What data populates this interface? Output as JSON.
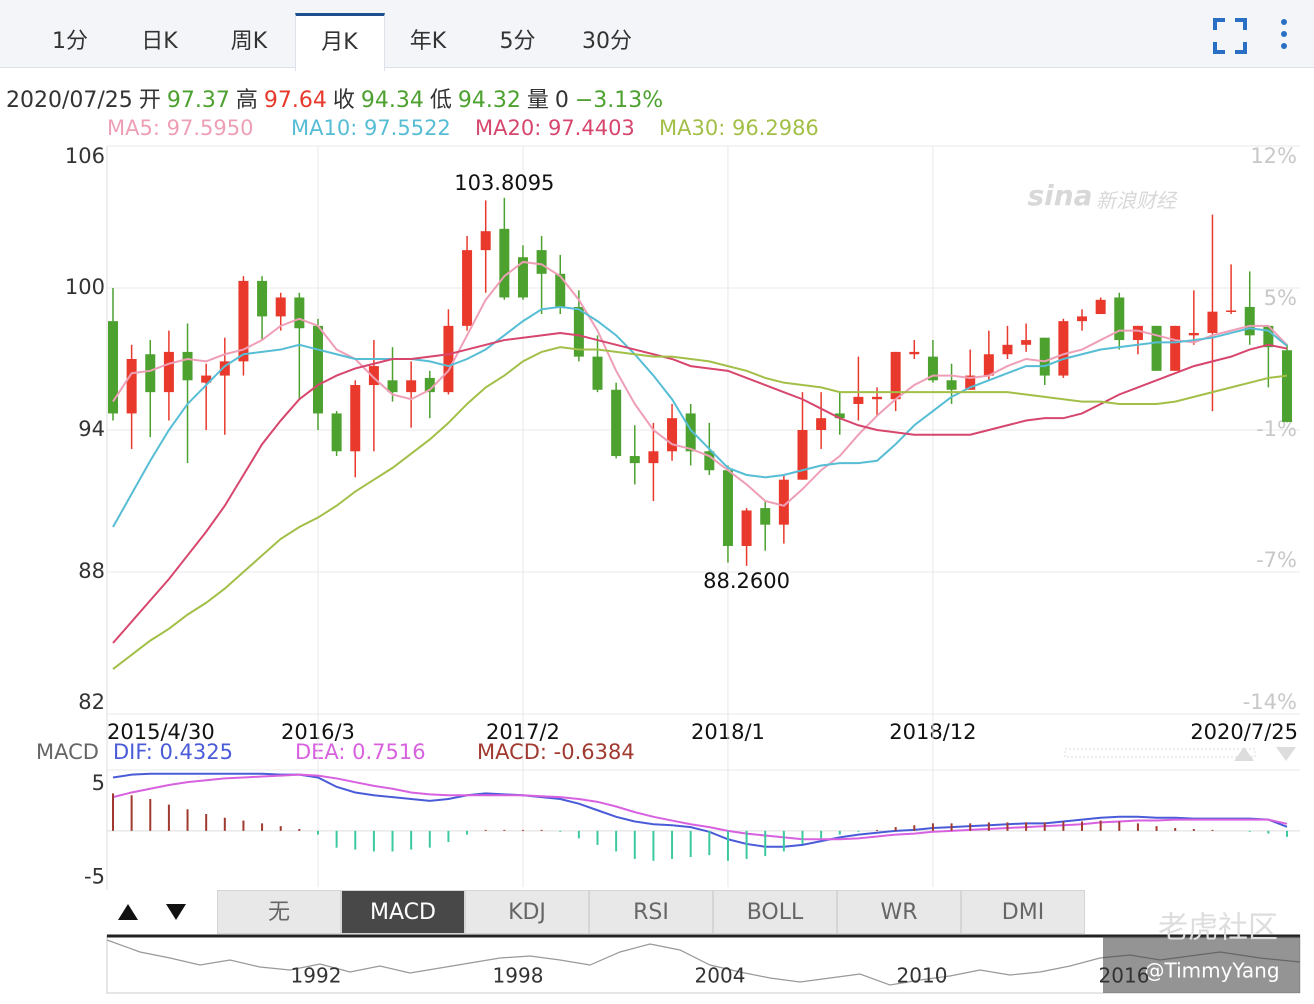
{
  "tabs": [
    "1分",
    "日K",
    "周K",
    "月K",
    "年K",
    "5分",
    "30分"
  ],
  "info": {
    "date": "2020/07/25",
    "fields": [
      {
        "label": "开",
        "value": 97.37,
        "color": "#4ca12f"
      },
      {
        "label": "高",
        "value": 97.64,
        "color": "#e8392c"
      },
      {
        "label": "收",
        "value": 94.34,
        "color": "#4ca12f"
      },
      {
        "label": "低",
        "value": 94.32,
        "color": "#4ca12f"
      },
      {
        "label": "量",
        "value": 0,
        "color": "#333333"
      }
    ],
    "change": "−3.13%",
    "change_color": "#4ca12f"
  },
  "chart_data": [
    {
      "type": "candlestick",
      "categories": [
        "2015/4/30",
        null,
        null,
        null,
        null,
        null,
        null,
        null,
        null,
        null,
        null,
        "2016/3",
        null,
        null,
        null,
        null,
        null,
        null,
        null,
        null,
        null,
        null,
        "2017/2",
        null,
        null,
        null,
        null,
        null,
        null,
        null,
        null,
        null,
        null,
        "2018/1",
        null,
        null,
        null,
        null,
        null,
        null,
        null,
        null,
        null,
        null,
        "2018/12",
        null,
        null,
        null,
        null,
        null,
        null,
        null,
        null,
        null,
        null,
        null,
        null,
        null,
        null,
        null,
        null,
        null,
        null,
        "2020/7/25"
      ],
      "open": [
        98.6,
        94.7,
        97.2,
        95.6,
        97.3,
        96.0,
        96.3,
        96.9,
        100.3,
        98.8,
        99.6,
        98.4,
        94.7,
        93.1,
        95.9,
        96.1,
        95.6,
        96.2,
        95.6,
        98.4,
        101.6,
        102.5,
        101.3,
        101.6,
        100.6,
        99.2,
        97.1,
        95.7,
        92.9,
        92.6,
        93.1,
        94.7,
        93.1,
        92.3,
        89.1,
        90.7,
        90.0,
        91.9,
        94.0,
        94.7,
        95.1,
        95.3,
        95.3,
        97.2,
        97.1,
        96.1,
        95.7,
        96.3,
        97.2,
        97.6,
        97.9,
        96.3,
        98.6,
        98.9,
        99.6,
        97.8,
        98.4,
        96.5,
        98.0,
        98.1,
        99.0,
        99.2,
        98.4,
        97.37
      ],
      "high": [
        100.0,
        97.6,
        97.8,
        98.2,
        98.5,
        96.8,
        97.9,
        100.5,
        100.5,
        99.8,
        99.8,
        98.7,
        94.8,
        96.1,
        97.8,
        97.5,
        96.9,
        96.5,
        99.1,
        102.2,
        103.7,
        103.8095,
        101.8,
        102.2,
        101.4,
        99.9,
        98.0,
        96.0,
        94.2,
        94.3,
        95.1,
        95.1,
        94.3,
        92.5,
        90.7,
        91.0,
        92.1,
        95.6,
        95.6,
        95.6,
        97.1,
        95.8,
        97.3,
        97.8,
        97.8,
        96.8,
        97.4,
        98.2,
        98.4,
        98.5,
        97.9,
        98.7,
        99.1,
        99.6,
        99.8,
        98.4,
        98.4,
        98.4,
        99.9,
        103.1,
        101.0,
        100.7,
        98.4,
        97.64
      ],
      "low": [
        94.4,
        93.2,
        93.7,
        94.4,
        92.6,
        94.0,
        93.8,
        96.3,
        97.8,
        98.2,
        95.3,
        94.0,
        92.9,
        92.0,
        93.1,
        95.2,
        94.1,
        94.5,
        95.5,
        98.2,
        99.8,
        99.5,
        99.5,
        98.9,
        98.9,
        96.9,
        95.6,
        92.8,
        91.7,
        91.0,
        92.7,
        92.5,
        92.1,
        88.4,
        88.26,
        88.9,
        89.2,
        91.9,
        93.2,
        93.8,
        94.4,
        94.6,
        94.8,
        97.0,
        96.0,
        95.1,
        95.7,
        96.1,
        97.0,
        97.3,
        95.9,
        96.2,
        98.2,
        98.9,
        97.4,
        97.2,
        96.5,
        96.5,
        97.6,
        94.8,
        98.9,
        97.6,
        95.8,
        94.32
      ],
      "close": [
        94.7,
        97.0,
        95.6,
        97.3,
        96.1,
        96.3,
        96.9,
        100.3,
        98.8,
        99.6,
        98.3,
        94.7,
        93.1,
        95.9,
        96.7,
        95.6,
        96.1,
        95.6,
        98.4,
        101.6,
        102.4,
        99.6,
        99.6,
        100.6,
        99.2,
        97.1,
        95.7,
        92.9,
        92.6,
        93.1,
        94.5,
        93.1,
        92.3,
        89.1,
        90.6,
        90.0,
        91.9,
        94.0,
        94.5,
        94.5,
        95.4,
        95.4,
        97.3,
        97.3,
        96.1,
        95.7,
        96.3,
        97.2,
        97.6,
        97.8,
        96.3,
        98.6,
        98.8,
        99.5,
        97.8,
        98.4,
        96.5,
        98.4,
        98.1,
        99.0,
        99.05,
        98.0,
        97.5,
        94.34
      ],
      "up_color": "#e8392c",
      "down_color": "#4ca12f",
      "series": [
        {
          "name": "MA5: 97.5950",
          "color": "#ee9fb6",
          "values": [
            95.2,
            96.4,
            96.5,
            96.8,
            97.0,
            96.9,
            97.2,
            97.4,
            97.8,
            98.4,
            98.7,
            98.4,
            97.4,
            97.0,
            96.2,
            95.5,
            95.3,
            95.7,
            96.5,
            98.0,
            99.5,
            100.5,
            101.1,
            101.0,
            100.5,
            99.5,
            98.2,
            96.5,
            95.1,
            94.0,
            93.4,
            93.2,
            92.9,
            92.3,
            91.7,
            91.0,
            90.8,
            91.5,
            92.3,
            92.9,
            93.8,
            94.6,
            95.3,
            95.9,
            96.3,
            96.3,
            96.2,
            96.3,
            96.7,
            97.0,
            96.9,
            97.2,
            97.4,
            97.8,
            98.2,
            98.2,
            98.0,
            97.8,
            97.7,
            98.0,
            98.2,
            98.4,
            98.4,
            97.595
          ]
        },
        {
          "name": "MA10: 97.5522",
          "color": "#56bdd5",
          "values": [
            89.9,
            91.3,
            92.7,
            94.0,
            95.1,
            95.9,
            96.7,
            97.2,
            97.3,
            97.4,
            97.6,
            97.4,
            97.2,
            97.0,
            97.0,
            97.0,
            97.0,
            96.9,
            96.7,
            97.0,
            97.4,
            98.0,
            98.6,
            99.1,
            99.2,
            99.1,
            98.6,
            98.0,
            97.2,
            96.3,
            95.3,
            94.0,
            93.2,
            92.4,
            92.1,
            92.0,
            92.1,
            92.3,
            92.5,
            92.6,
            92.6,
            92.7,
            93.4,
            94.2,
            94.8,
            95.4,
            95.8,
            96.1,
            96.4,
            96.7,
            96.7,
            97.0,
            97.2,
            97.4,
            97.5,
            97.6,
            97.7,
            97.7,
            97.8,
            97.9,
            98.1,
            98.3,
            98.2,
            97.5522
          ]
        },
        {
          "name": "MA20: 97.4403",
          "color": "#d7466d",
          "values": [
            85.0,
            85.9,
            86.8,
            87.7,
            88.7,
            89.7,
            90.8,
            92.1,
            93.4,
            94.4,
            95.3,
            95.9,
            96.3,
            96.6,
            96.8,
            97.0,
            97.0,
            97.1,
            97.2,
            97.4,
            97.6,
            97.8,
            97.9,
            98.0,
            98.1,
            98.0,
            97.8,
            97.6,
            97.4,
            97.2,
            97.0,
            96.7,
            96.6,
            96.5,
            96.2,
            95.9,
            95.6,
            95.3,
            94.9,
            94.5,
            94.2,
            94.0,
            93.9,
            93.8,
            93.8,
            93.8,
            93.8,
            94.0,
            94.2,
            94.4,
            94.5,
            94.5,
            94.7,
            95.1,
            95.5,
            95.8,
            96.1,
            96.4,
            96.7,
            96.9,
            97.1,
            97.4,
            97.6,
            97.4403
          ]
        },
        {
          "name": "MA30: 96.2986",
          "color": "#a2bf48",
          "values": [
            83.9,
            84.5,
            85.1,
            85.6,
            86.2,
            86.7,
            87.3,
            88.0,
            88.7,
            89.4,
            89.9,
            90.3,
            90.8,
            91.4,
            91.9,
            92.4,
            93.0,
            93.6,
            94.3,
            95.1,
            95.8,
            96.3,
            96.9,
            97.3,
            97.5,
            97.4,
            97.4,
            97.3,
            97.2,
            97.1,
            97.1,
            97.0,
            96.9,
            96.7,
            96.5,
            96.2,
            96.0,
            95.9,
            95.8,
            95.6,
            95.6,
            95.6,
            95.6,
            95.6,
            95.6,
            95.6,
            95.6,
            95.6,
            95.6,
            95.5,
            95.4,
            95.3,
            95.2,
            95.2,
            95.1,
            95.1,
            95.1,
            95.2,
            95.4,
            95.6,
            95.8,
            96.0,
            96.2,
            96.2986
          ]
        }
      ],
      "annotations": {
        "high": 103.8095,
        "low": {
          "value": 88.26,
          "label": "88.2600"
        }
      },
      "ylim": [
        82,
        106
      ],
      "yticks": [
        82,
        88,
        94,
        100,
        106
      ],
      "y2lim": [
        -14,
        12
      ],
      "y2ticks": [
        {
          "value": -14,
          "label": "-14%"
        },
        {
          "value": -7,
          "label": "-7%"
        },
        {
          "value": -1,
          "label": "-1%"
        },
        {
          "value": 5,
          "label": "5%"
        },
        {
          "value": 12,
          "label": "12%"
        }
      ],
      "grid": true
    },
    {
      "type": "macd",
      "title": "MACD",
      "series": [
        {
          "name": "DIF: 0.4325",
          "type": "line",
          "color": "#4a5bd8",
          "values": [
            5.7,
            6.0,
            6.1,
            6.1,
            6.1,
            6.1,
            6.1,
            6.1,
            6.1,
            6.0,
            6.0,
            5.7,
            4.7,
            4.1,
            3.8,
            3.6,
            3.4,
            3.2,
            3.4,
            3.8,
            4.0,
            3.9,
            3.8,
            3.6,
            3.4,
            2.9,
            2.2,
            1.5,
            1.0,
            0.7,
            0.6,
            0.4,
            -0.1,
            -0.9,
            -1.4,
            -1.7,
            -1.7,
            -1.5,
            -1.1,
            -0.7,
            -0.4,
            -0.2,
            0.0,
            0.1,
            0.3,
            0.4,
            0.5,
            0.6,
            0.7,
            0.8,
            0.8,
            1.0,
            1.2,
            1.4,
            1.5,
            1.5,
            1.4,
            1.4,
            1.3,
            1.3,
            1.3,
            1.3,
            1.2,
            0.4325
          ]
        },
        {
          "name": "DEA: 0.7516",
          "type": "line",
          "color": "#d861e0",
          "values": [
            3.6,
            4.1,
            4.5,
            4.9,
            5.2,
            5.4,
            5.6,
            5.7,
            5.8,
            5.9,
            6.0,
            5.9,
            5.6,
            5.2,
            4.8,
            4.5,
            4.1,
            3.9,
            3.8,
            3.8,
            3.8,
            3.8,
            3.8,
            3.7,
            3.6,
            3.4,
            3.1,
            2.6,
            2.0,
            1.5,
            1.1,
            0.7,
            0.4,
            0.0,
            -0.3,
            -0.5,
            -0.7,
            -0.9,
            -0.9,
            -0.9,
            -0.8,
            -0.6,
            -0.4,
            -0.3,
            -0.1,
            0.0,
            0.1,
            0.2,
            0.3,
            0.4,
            0.5,
            0.6,
            0.7,
            0.9,
            1.0,
            1.1,
            1.1,
            1.2,
            1.2,
            1.2,
            1.2,
            1.2,
            1.2,
            0.7516
          ]
        },
        {
          "name": "MACD: -0.6384",
          "type": "bar",
          "color": "#a0392f",
          "neg_color": "#3cc8a0",
          "values": [
            4.0,
            3.8,
            3.4,
            2.8,
            2.3,
            1.8,
            1.4,
            1.1,
            0.8,
            0.5,
            0.2,
            -0.4,
            -1.8,
            -2.0,
            -2.2,
            -2.2,
            -2.0,
            -1.8,
            -1.2,
            -0.4,
            0.1,
            0.1,
            0.1,
            0.1,
            -0.1,
            -0.8,
            -1.5,
            -2.2,
            -3.0,
            -3.2,
            -3.0,
            -2.8,
            -2.6,
            -3.2,
            -3.0,
            -2.7,
            -2.2,
            -1.4,
            -0.8,
            -0.4,
            -0.1,
            0.1,
            0.4,
            0.6,
            0.8,
            0.8,
            0.8,
            0.9,
            0.9,
            0.9,
            0.9,
            1.0,
            1.0,
            1.1,
            1.0,
            0.8,
            0.5,
            0.3,
            0.2,
            0.1,
            0,
            -0.1,
            -0.3,
            -0.6384
          ]
        }
      ],
      "ylim": [
        -6,
        6.5
      ],
      "yticks": [
        -5,
        5
      ]
    }
  ],
  "indicator_tabs": [
    "无",
    "MACD",
    "KDJ",
    "RSI",
    "BOLL",
    "WR",
    "DMI"
  ],
  "navigator": {
    "years": [
      "1992",
      "1998",
      "2004",
      "2010",
      "2016"
    ]
  },
  "watermarks": {
    "sina": "sina",
    "brand": "新浪财经",
    "tiger": "老虎社区",
    "user": "@TimmyYang"
  }
}
